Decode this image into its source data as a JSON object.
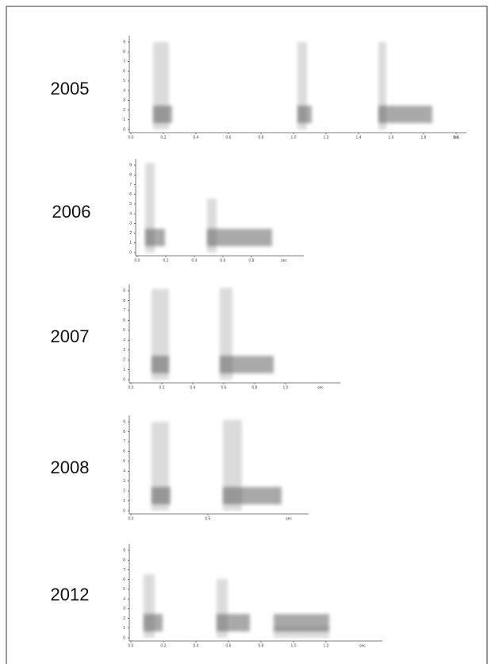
{
  "panels": [
    {
      "label": "2005",
      "x_ticks": [
        "0.0",
        "0.2",
        "0.4",
        "0.6",
        "0.8",
        "1.0",
        "1.2",
        "1.4",
        "1.6",
        "1.8",
        "2.0"
      ],
      "unit": "sec",
      "y_ticks": [
        "0",
        "1",
        "2",
        "3",
        "4",
        "5",
        "6",
        "7",
        "8",
        "9"
      ]
    },
    {
      "label": "2006",
      "x_ticks": [
        "0.0",
        "0.2",
        "0.4",
        "0.6",
        "0.8"
      ],
      "unit": "sec",
      "y_ticks": [
        "0",
        "1",
        "2",
        "3",
        "4",
        "5",
        "6",
        "7",
        "8",
        "9"
      ]
    },
    {
      "label": "2007",
      "x_ticks": [
        "0.0",
        "0.2",
        "0.4",
        "0.6",
        "0.8",
        "1.0"
      ],
      "unit": "sec",
      "y_ticks": [
        "0",
        "1",
        "2",
        "3",
        "4",
        "5",
        "6",
        "7",
        "8",
        "9"
      ]
    },
    {
      "label": "2008",
      "x_ticks": [
        "0.0",
        "0.5"
      ],
      "unit": "sec",
      "y_ticks": [
        "0",
        "1",
        "2",
        "3",
        "4",
        "5",
        "6",
        "7",
        "8",
        "9"
      ]
    },
    {
      "label": "2012",
      "x_ticks": [
        "0.0",
        "0.2",
        "0.4",
        "0.6",
        "0.8",
        "1.0",
        "1.2"
      ],
      "unit": "sec",
      "y_ticks": [
        "0",
        "1",
        "2",
        "3",
        "4",
        "5",
        "6",
        "7",
        "8",
        "9"
      ]
    }
  ]
}
